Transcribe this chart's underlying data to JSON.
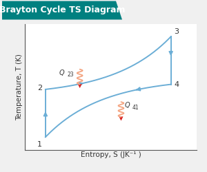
{
  "title": "Brayton Cycle TS Diagram",
  "title_bg": "#008080",
  "title_color": "white",
  "xlabel": "Entropy, S (JK⁻¹ )",
  "ylabel": "Temperature, T (K)",
  "bg_color": "#f0f0f0",
  "plot_bg": "white",
  "curve_color": "#6baed6",
  "squiggle_color": "#f4a582",
  "red_arrow_color": "#d62020",
  "points": {
    "1": [
      0.12,
      0.1
    ],
    "2": [
      0.12,
      0.48
    ],
    "3": [
      0.85,
      0.9
    ],
    "4": [
      0.85,
      0.52
    ]
  },
  "Q23_label": "Q",
  "Q23_sub": "23",
  "Q41_label": "Q",
  "Q41_sub": "41",
  "figsize": [
    3.0,
    2.5
  ],
  "dpi": 100
}
